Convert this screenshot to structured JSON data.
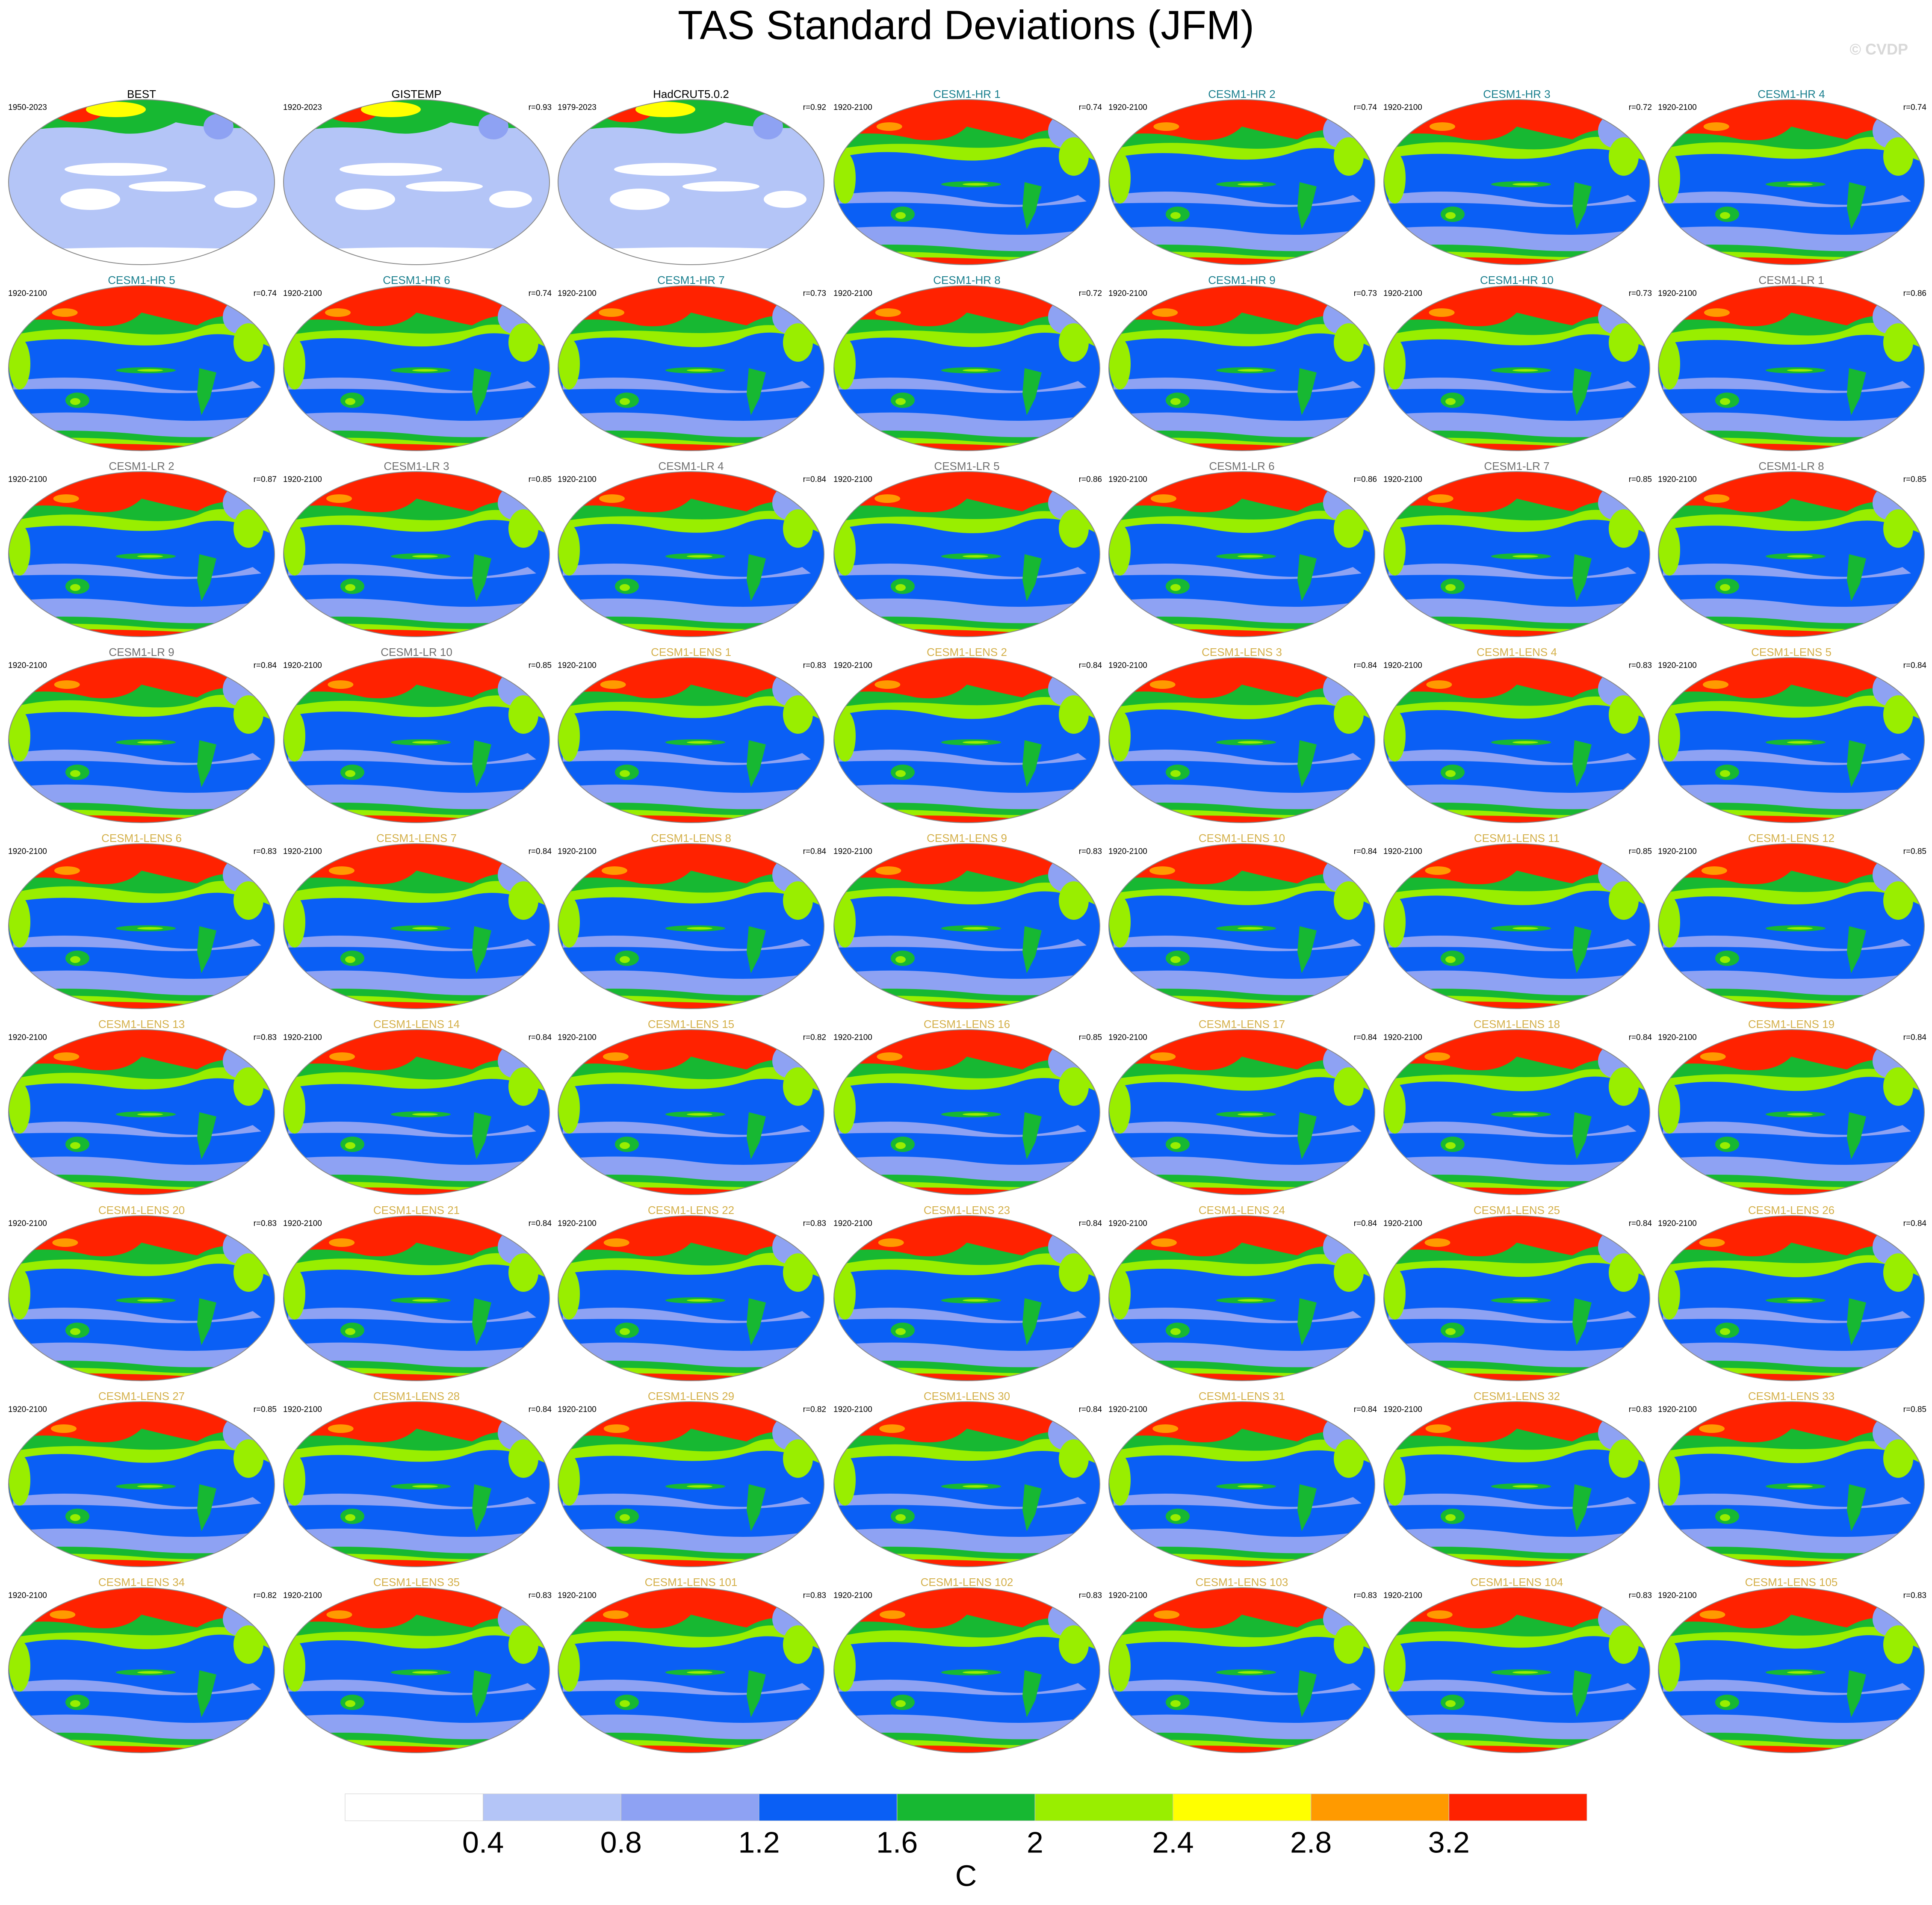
{
  "title": "TAS Standard Deviations (JFM)",
  "watermark": "© CVDP",
  "panels": [
    {
      "title": "BEST",
      "period": "1950-2023",
      "title_color": "#000000"
    },
    {
      "title": "GISTEMP",
      "period": "1920-2023",
      "r": "r=0.93",
      "title_color": "#000000"
    },
    {
      "title": "HadCRUT5.0.2",
      "period": "1979-2023",
      "r": "r=0.92",
      "title_color": "#000000"
    },
    {
      "title": "CESM1-HR 1",
      "period": "1920-2100",
      "r": "r=0.74",
      "title_color": "#1a7f8e"
    },
    {
      "title": "CESM1-HR 2",
      "period": "1920-2100",
      "r": "r=0.74",
      "title_color": "#1a7f8e"
    },
    {
      "title": "CESM1-HR 3",
      "period": "1920-2100",
      "r": "r=0.72",
      "title_color": "#1a7f8e"
    },
    {
      "title": "CESM1-HR 4",
      "period": "1920-2100",
      "r": "r=0.74",
      "title_color": "#1a7f8e"
    },
    {
      "title": "CESM1-HR 5",
      "period": "1920-2100",
      "r": "r=0.74",
      "title_color": "#1a7f8e"
    },
    {
      "title": "CESM1-HR 6",
      "period": "1920-2100",
      "r": "r=0.74",
      "title_color": "#1a7f8e"
    },
    {
      "title": "CESM1-HR 7",
      "period": "1920-2100",
      "r": "r=0.73",
      "title_color": "#1a7f8e"
    },
    {
      "title": "CESM1-HR 8",
      "period": "1920-2100",
      "r": "r=0.72",
      "title_color": "#1a7f8e"
    },
    {
      "title": "CESM1-HR 9",
      "period": "1920-2100",
      "r": "r=0.73",
      "title_color": "#1a7f8e"
    },
    {
      "title": "CESM1-HR 10",
      "period": "1920-2100",
      "r": "r=0.73",
      "title_color": "#1a7f8e"
    },
    {
      "title": "CESM1-LR 1",
      "period": "1920-2100",
      "r": "r=0.86",
      "title_color": "#707070"
    },
    {
      "title": "CESM1-LR 2",
      "period": "1920-2100",
      "r": "r=0.87",
      "title_color": "#707070"
    },
    {
      "title": "CESM1-LR 3",
      "period": "1920-2100",
      "r": "r=0.85",
      "title_color": "#707070"
    },
    {
      "title": "CESM1-LR 4",
      "period": "1920-2100",
      "r": "r=0.84",
      "title_color": "#707070"
    },
    {
      "title": "CESM1-LR 5",
      "period": "1920-2100",
      "r": "r=0.86",
      "title_color": "#707070"
    },
    {
      "title": "CESM1-LR 6",
      "period": "1920-2100",
      "r": "r=0.86",
      "title_color": "#707070"
    },
    {
      "title": "CESM1-LR 7",
      "period": "1920-2100",
      "r": "r=0.85",
      "title_color": "#707070"
    },
    {
      "title": "CESM1-LR 8",
      "period": "1920-2100",
      "r": "r=0.85",
      "title_color": "#707070"
    },
    {
      "title": "CESM1-LR 9",
      "period": "1920-2100",
      "r": "r=0.84",
      "title_color": "#707070"
    },
    {
      "title": "CESM1-LR 10",
      "period": "1920-2100",
      "r": "r=0.85",
      "title_color": "#707070"
    },
    {
      "title": "CESM1-LENS 1",
      "period": "1920-2100",
      "r": "r=0.83",
      "title_color": "#d4b04a"
    },
    {
      "title": "CESM1-LENS 2",
      "period": "1920-2100",
      "r": "r=0.84",
      "title_color": "#d4b04a"
    },
    {
      "title": "CESM1-LENS 3",
      "period": "1920-2100",
      "r": "r=0.84",
      "title_color": "#d4b04a"
    },
    {
      "title": "CESM1-LENS 4",
      "period": "1920-2100",
      "r": "r=0.83",
      "title_color": "#d4b04a"
    },
    {
      "title": "CESM1-LENS 5",
      "period": "1920-2100",
      "r": "r=0.84",
      "title_color": "#d4b04a"
    },
    {
      "title": "CESM1-LENS 6",
      "period": "1920-2100",
      "r": "r=0.83",
      "title_color": "#d4b04a"
    },
    {
      "title": "CESM1-LENS 7",
      "period": "1920-2100",
      "r": "r=0.84",
      "title_color": "#d4b04a"
    },
    {
      "title": "CESM1-LENS 8",
      "period": "1920-2100",
      "r": "r=0.84",
      "title_color": "#d4b04a"
    },
    {
      "title": "CESM1-LENS 9",
      "period": "1920-2100",
      "r": "r=0.83",
      "title_color": "#d4b04a"
    },
    {
      "title": "CESM1-LENS 10",
      "period": "1920-2100",
      "r": "r=0.84",
      "title_color": "#d4b04a"
    },
    {
      "title": "CESM1-LENS 11",
      "period": "1920-2100",
      "r": "r=0.85",
      "title_color": "#d4b04a"
    },
    {
      "title": "CESM1-LENS 12",
      "period": "1920-2100",
      "r": "r=0.85",
      "title_color": "#d4b04a"
    },
    {
      "title": "CESM1-LENS 13",
      "period": "1920-2100",
      "r": "r=0.83",
      "title_color": "#d4b04a"
    },
    {
      "title": "CESM1-LENS 14",
      "period": "1920-2100",
      "r": "r=0.84",
      "title_color": "#d4b04a"
    },
    {
      "title": "CESM1-LENS 15",
      "period": "1920-2100",
      "r": "r=0.82",
      "title_color": "#d4b04a"
    },
    {
      "title": "CESM1-LENS 16",
      "period": "1920-2100",
      "r": "r=0.85",
      "title_color": "#d4b04a"
    },
    {
      "title": "CESM1-LENS 17",
      "period": "1920-2100",
      "r": "r=0.84",
      "title_color": "#d4b04a"
    },
    {
      "title": "CESM1-LENS 18",
      "period": "1920-2100",
      "r": "r=0.84",
      "title_color": "#d4b04a"
    },
    {
      "title": "CESM1-LENS 19",
      "period": "1920-2100",
      "r": "r=0.84",
      "title_color": "#d4b04a"
    },
    {
      "title": "CESM1-LENS 20",
      "period": "1920-2100",
      "r": "r=0.83",
      "title_color": "#d4b04a"
    },
    {
      "title": "CESM1-LENS 21",
      "period": "1920-2100",
      "r": "r=0.84",
      "title_color": "#d4b04a"
    },
    {
      "title": "CESM1-LENS 22",
      "period": "1920-2100",
      "r": "r=0.83",
      "title_color": "#d4b04a"
    },
    {
      "title": "CESM1-LENS 23",
      "period": "1920-2100",
      "r": "r=0.84",
      "title_color": "#d4b04a"
    },
    {
      "title": "CESM1-LENS 24",
      "period": "1920-2100",
      "r": "r=0.84",
      "title_color": "#d4b04a"
    },
    {
      "title": "CESM1-LENS 25",
      "period": "1920-2100",
      "r": "r=0.84",
      "title_color": "#d4b04a"
    },
    {
      "title": "CESM1-LENS 26",
      "period": "1920-2100",
      "r": "r=0.84",
      "title_color": "#d4b04a"
    },
    {
      "title": "CESM1-LENS 27",
      "period": "1920-2100",
      "r": "r=0.85",
      "title_color": "#d4b04a"
    },
    {
      "title": "CESM1-LENS 28",
      "period": "1920-2100",
      "r": "r=0.84",
      "title_color": "#d4b04a"
    },
    {
      "title": "CESM1-LENS 29",
      "period": "1920-2100",
      "r": "r=0.82",
      "title_color": "#d4b04a"
    },
    {
      "title": "CESM1-LENS 30",
      "period": "1920-2100",
      "r": "r=0.84",
      "title_color": "#d4b04a"
    },
    {
      "title": "CESM1-LENS 31",
      "period": "1920-2100",
      "r": "r=0.84",
      "title_color": "#d4b04a"
    },
    {
      "title": "CESM1-LENS 32",
      "period": "1920-2100",
      "r": "r=0.83",
      "title_color": "#d4b04a"
    },
    {
      "title": "CESM1-LENS 33",
      "period": "1920-2100",
      "r": "r=0.85",
      "title_color": "#d4b04a"
    },
    {
      "title": "CESM1-LENS 34",
      "period": "1920-2100",
      "r": "r=0.82",
      "title_color": "#d4b04a"
    },
    {
      "title": "CESM1-LENS 35",
      "period": "1920-2100",
      "r": "r=0.83",
      "title_color": "#d4b04a"
    },
    {
      "title": "CESM1-LENS 101",
      "period": "1920-2100",
      "r": "r=0.83",
      "title_color": "#d4b04a"
    },
    {
      "title": "CESM1-LENS 102",
      "period": "1920-2100",
      "r": "r=0.83",
      "title_color": "#d4b04a"
    },
    {
      "title": "CESM1-LENS 103",
      "period": "1920-2100",
      "r": "r=0.83",
      "title_color": "#d4b04a"
    },
    {
      "title": "CESM1-LENS 104",
      "period": "1920-2100",
      "r": "r=0.83",
      "title_color": "#d4b04a"
    },
    {
      "title": "CESM1-LENS 105",
      "period": "1920-2100",
      "r": "r=0.83",
      "title_color": "#d4b04a"
    }
  ],
  "colorbar": {
    "levels": [
      0.4,
      0.8,
      1.2,
      1.6,
      2,
      2.4,
      2.8,
      3.2
    ],
    "colors": [
      "#ffffff",
      "#b4c5f7",
      "#8ea2f3",
      "#0a5ff5",
      "#17b832",
      "#99ee00",
      "#ffff00",
      "#ff9a00",
      "#ff2200"
    ],
    "unit": "C"
  }
}
